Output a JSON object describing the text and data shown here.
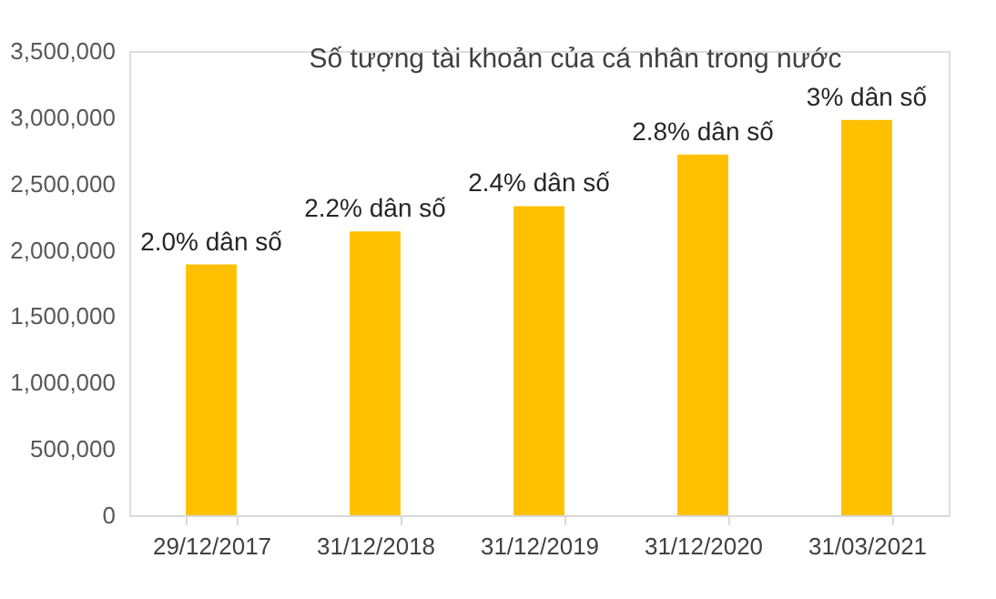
{
  "chart_data": {
    "type": "bar",
    "title": "Số tượng tài khoản của cá nhân trong nước",
    "categories": [
      "29/12/2017",
      "31/12/2018",
      "31/12/2019",
      "31/12/2020",
      "31/03/2021"
    ],
    "values": [
      1890000,
      2140000,
      2330000,
      2720000,
      2980000
    ],
    "annotations": [
      {
        "text": "2.0% dân số",
        "x": "29/12/2017",
        "y": 1890000
      },
      {
        "text": "2.2% dân số",
        "x": "31/12/2018",
        "y": 2140000
      },
      {
        "text": "2.4% dân số",
        "x": "31/12/2019",
        "y": 2330000
      },
      {
        "text": "2.8% dân số",
        "x": "31/12/2020",
        "y": 2720000
      },
      {
        "text": "3% dân số",
        "x": "31/03/2021",
        "y": 2980000
      }
    ],
    "color": "#ffc000",
    "ylim": [
      0,
      3500000
    ],
    "yticks": [
      0,
      {
        "value": 500000,
        "label": "500,000"
      },
      {
        "value": 1000000,
        "label": "1,000,000"
      },
      {
        "value": 1500000,
        "label": "1,500,000"
      },
      {
        "value": 2000000,
        "label": "2,000,000"
      },
      {
        "value": 2500000,
        "label": "2,500,000"
      },
      {
        "value": 3000000,
        "label": "3,000,000"
      },
      {
        "value": 3500000,
        "label": "3,500,000"
      }
    ],
    "grid": false
  }
}
